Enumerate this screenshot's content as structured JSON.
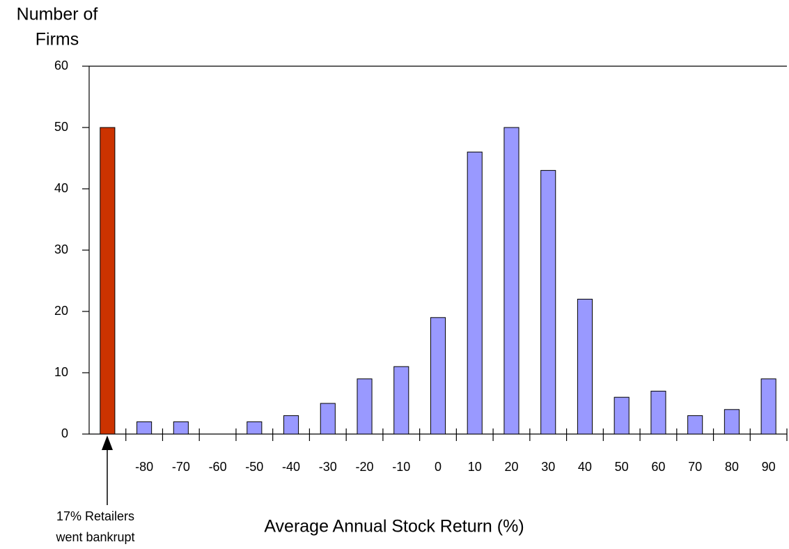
{
  "chart_data": {
    "type": "bar",
    "y_label": [
      "Number of",
      "Firms"
    ],
    "x_label": "Average Annual Stock Return (%)",
    "annotation": [
      "17% Retailers",
      "went bankrupt"
    ],
    "categories": [
      null,
      "-80",
      "-70",
      "-60",
      "-50",
      "-40",
      "-30",
      "-20",
      "-10",
      "0",
      "10",
      "20",
      "30",
      "40",
      "50",
      "60",
      "70",
      "80",
      "90"
    ],
    "values": [
      50,
      2,
      2,
      0,
      2,
      3,
      5,
      9,
      11,
      19,
      46,
      50,
      43,
      22,
      6,
      7,
      3,
      4,
      9
    ],
    "colors": [
      "#cc3300",
      "#9999ff",
      "#9999ff",
      "#9999ff",
      "#9999ff",
      "#9999ff",
      "#9999ff",
      "#9999ff",
      "#9999ff",
      "#9999ff",
      "#9999ff",
      "#9999ff",
      "#9999ff",
      "#9999ff",
      "#9999ff",
      "#9999ff",
      "#9999ff",
      "#9999ff",
      "#9999ff"
    ],
    "ylim": [
      0,
      60
    ],
    "yticks": [
      0,
      10,
      20,
      30,
      40,
      50,
      60
    ],
    "grid": false
  }
}
